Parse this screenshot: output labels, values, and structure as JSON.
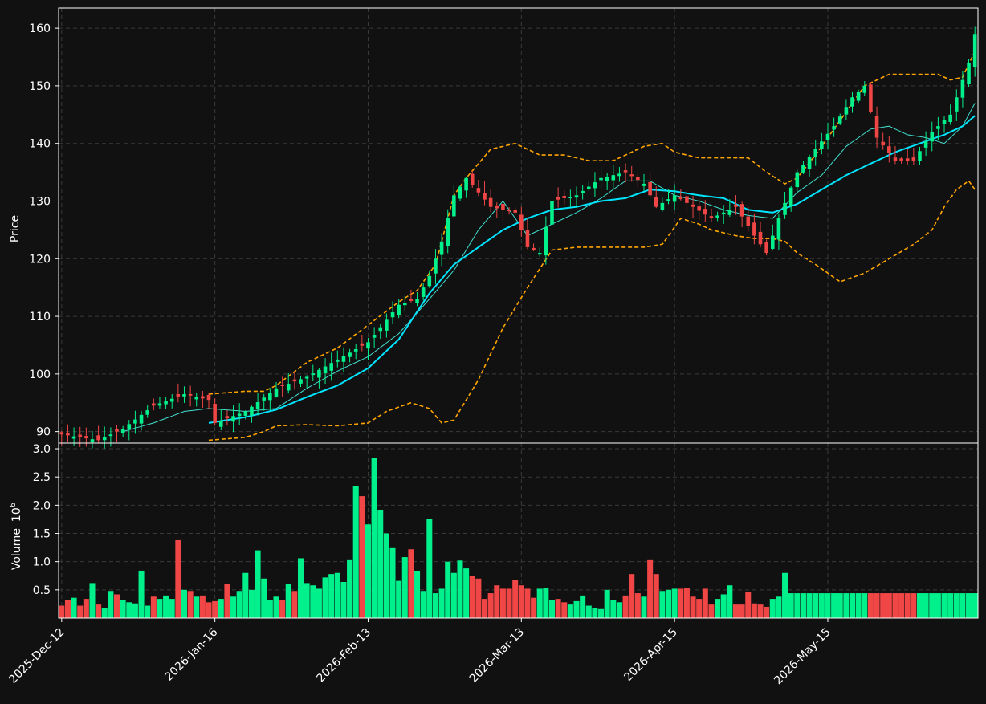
{
  "chart_data": {
    "type": "candlestick",
    "colors": {
      "background": "#111111",
      "up": "#00f08c",
      "down": "#f04646",
      "ma_fast": "#40e0d0",
      "ma_slow": "#00e5ff",
      "bands": "#ffa500",
      "grid": "#3a3a3a",
      "text": "#ffffff"
    },
    "price_panel": {
      "ylabel": "Price",
      "ylim": [
        88,
        163.5
      ],
      "yticks": [
        "90",
        "100",
        "110",
        "120",
        "130",
        "140",
        "150",
        "160"
      ],
      "grid": true
    },
    "volume_panel": {
      "ylabel": "Volume",
      "scale_label": "10",
      "scale_exp": "6",
      "ylim": [
        0,
        3.1
      ],
      "yticks": [
        "0.5",
        "1.0",
        "1.5",
        "2.0",
        "2.5",
        "3.0"
      ],
      "grid": true
    },
    "x_ticks": [
      {
        "index": 0,
        "label": "2025-Dec-12"
      },
      {
        "index": 25,
        "label": "2026-Jan-16"
      },
      {
        "index": 50,
        "label": "2026-Feb-13"
      },
      {
        "index": 75,
        "label": "2026-Mar-13"
      },
      {
        "index": 100,
        "label": "2026-Apr-15"
      },
      {
        "index": 125,
        "label": "2026-May-15"
      }
    ],
    "anchors": {
      "close": [
        [
          0,
          89.5
        ],
        [
          6,
          88.5
        ],
        [
          10,
          90.5
        ],
        [
          15,
          94.5
        ],
        [
          20,
          96.5
        ],
        [
          24,
          95.5
        ],
        [
          25,
          91.5
        ],
        [
          30,
          93.5
        ],
        [
          35,
          97.5
        ],
        [
          40,
          99.5
        ],
        [
          45,
          102.5
        ],
        [
          50,
          105.5
        ],
        [
          55,
          112
        ],
        [
          58,
          113
        ],
        [
          60,
          117
        ],
        [
          62,
          123
        ],
        [
          64,
          131
        ],
        [
          66,
          134
        ],
        [
          70,
          129
        ],
        [
          74,
          128
        ],
        [
          76,
          122
        ],
        [
          78,
          121
        ],
        [
          80,
          130
        ],
        [
          84,
          131
        ],
        [
          88,
          134
        ],
        [
          92,
          135
        ],
        [
          95,
          133
        ],
        [
          97,
          129
        ],
        [
          100,
          131
        ],
        [
          103,
          129
        ],
        [
          106,
          127
        ],
        [
          110,
          129
        ],
        [
          113,
          124
        ],
        [
          115,
          121
        ],
        [
          117,
          127
        ],
        [
          120,
          135
        ],
        [
          123,
          139
        ],
        [
          126,
          143
        ],
        [
          129,
          148
        ],
        [
          131,
          150
        ],
        [
          133,
          141
        ],
        [
          136,
          137
        ],
        [
          139,
          137
        ],
        [
          142,
          142
        ],
        [
          145,
          145
        ],
        [
          146,
          148
        ],
        [
          148,
          154
        ],
        [
          149,
          159
        ]
      ],
      "ma_fast": [
        [
          10,
          90
        ],
        [
          15,
          91.5
        ],
        [
          20,
          93.5
        ],
        [
          24,
          94
        ],
        [
          30,
          93.5
        ],
        [
          35,
          94
        ],
        [
          40,
          97.5
        ],
        [
          45,
          100.5
        ],
        [
          50,
          103
        ],
        [
          55,
          107
        ],
        [
          60,
          113
        ],
        [
          64,
          118
        ],
        [
          68,
          125
        ],
        [
          72,
          130
        ],
        [
          76,
          124
        ],
        [
          80,
          126
        ],
        [
          84,
          128
        ],
        [
          88,
          130.5
        ],
        [
          92,
          133.5
        ],
        [
          96,
          133.5
        ],
        [
          100,
          131
        ],
        [
          104,
          130
        ],
        [
          108,
          128.5
        ],
        [
          112,
          127.5
        ],
        [
          116,
          127
        ],
        [
          120,
          131.5
        ],
        [
          124,
          134.5
        ],
        [
          128,
          139.5
        ],
        [
          132,
          142.5
        ],
        [
          135,
          143
        ],
        [
          138,
          141.5
        ],
        [
          141,
          141
        ],
        [
          144,
          140
        ],
        [
          147,
          143
        ],
        [
          149,
          147
        ]
      ],
      "ma_slow": [
        [
          24,
          91.5
        ],
        [
          30,
          92.5
        ],
        [
          35,
          93.8
        ],
        [
          40,
          96
        ],
        [
          45,
          98
        ],
        [
          50,
          101
        ],
        [
          55,
          106
        ],
        [
          60,
          114
        ],
        [
          64,
          119
        ],
        [
          68,
          122
        ],
        [
          72,
          125
        ],
        [
          76,
          127
        ],
        [
          80,
          128.5
        ],
        [
          84,
          129
        ],
        [
          88,
          130
        ],
        [
          92,
          130.5
        ],
        [
          96,
          132
        ],
        [
          100,
          131.7
        ],
        [
          104,
          131
        ],
        [
          108,
          130.5
        ],
        [
          112,
          128.5
        ],
        [
          116,
          128
        ],
        [
          120,
          129.5
        ],
        [
          124,
          132
        ],
        [
          128,
          134.5
        ],
        [
          132,
          136.5
        ],
        [
          136,
          138.5
        ],
        [
          140,
          140
        ],
        [
          144,
          141.5
        ],
        [
          147,
          143
        ],
        [
          149,
          144.8
        ]
      ],
      "upper_band": [
        [
          24,
          96.5
        ],
        [
          30,
          97
        ],
        [
          33,
          97
        ],
        [
          35,
          98
        ],
        [
          40,
          102
        ],
        [
          45,
          104.5
        ],
        [
          50,
          108.5
        ],
        [
          55,
          112.5
        ],
        [
          58,
          114.5
        ],
        [
          61,
          119
        ],
        [
          64,
          131
        ],
        [
          66,
          134
        ],
        [
          70,
          139
        ],
        [
          74,
          140
        ],
        [
          78,
          138
        ],
        [
          82,
          138
        ],
        [
          86,
          137
        ],
        [
          90,
          137
        ],
        [
          92,
          138
        ],
        [
          95,
          139.5
        ],
        [
          98,
          140
        ],
        [
          100,
          138.5
        ],
        [
          104,
          137.5
        ],
        [
          108,
          137.5
        ],
        [
          112,
          137.5
        ],
        [
          115,
          135
        ],
        [
          118,
          133
        ],
        [
          120,
          134
        ],
        [
          123,
          138
        ],
        [
          127,
          144
        ],
        [
          131,
          150
        ],
        [
          135,
          152
        ],
        [
          139,
          152
        ],
        [
          143,
          152
        ],
        [
          145,
          151
        ],
        [
          147,
          151.5
        ],
        [
          149,
          156
        ]
      ],
      "lower_band": [
        [
          24,
          88.5
        ],
        [
          30,
          89
        ],
        [
          33,
          90
        ],
        [
          35,
          91
        ],
        [
          40,
          91.2
        ],
        [
          45,
          91
        ],
        [
          50,
          91.5
        ],
        [
          53,
          93.5
        ],
        [
          57,
          95
        ],
        [
          60,
          94
        ],
        [
          62,
          91.5
        ],
        [
          64,
          92
        ],
        [
          68,
          99
        ],
        [
          72,
          108
        ],
        [
          76,
          115
        ],
        [
          80,
          121.5
        ],
        [
          84,
          122
        ],
        [
          88,
          122
        ],
        [
          92,
          122
        ],
        [
          95,
          122
        ],
        [
          98,
          122.5
        ],
        [
          100,
          125.5
        ],
        [
          101,
          127
        ],
        [
          104,
          126
        ],
        [
          106,
          125
        ],
        [
          110,
          124
        ],
        [
          113,
          123.5
        ],
        [
          116,
          123.5
        ],
        [
          118,
          123
        ],
        [
          120,
          121
        ],
        [
          123,
          119
        ],
        [
          125,
          117.5
        ],
        [
          127,
          116
        ],
        [
          131,
          117.5
        ],
        [
          135,
          120
        ],
        [
          139,
          122.5
        ],
        [
          142,
          125
        ],
        [
          144,
          129
        ],
        [
          146,
          132
        ],
        [
          148,
          133.5
        ],
        [
          149,
          132
        ]
      ],
      "volume": [
        [
          0,
          0.22
        ],
        [
          1,
          0.32
        ],
        [
          2,
          0.36
        ],
        [
          3,
          0.22
        ],
        [
          4,
          0.34
        ],
        [
          5,
          0.62
        ],
        [
          6,
          0.24
        ],
        [
          7,
          0.18
        ],
        [
          8,
          0.48
        ],
        [
          9,
          0.42
        ],
        [
          10,
          0.32
        ],
        [
          11,
          0.28
        ],
        [
          12,
          0.26
        ],
        [
          13,
          0.84
        ],
        [
          14,
          0.22
        ],
        [
          15,
          0.38
        ],
        [
          16,
          0.34
        ],
        [
          17,
          0.4
        ],
        [
          18,
          0.34
        ],
        [
          19,
          1.38
        ],
        [
          20,
          0.5
        ],
        [
          21,
          0.48
        ],
        [
          22,
          0.38
        ],
        [
          23,
          0.4
        ],
        [
          24,
          0.28
        ],
        [
          25,
          0.3
        ],
        [
          26,
          0.34
        ],
        [
          27,
          0.6
        ],
        [
          28,
          0.38
        ],
        [
          29,
          0.48
        ],
        [
          30,
          0.8
        ],
        [
          31,
          0.5
        ],
        [
          32,
          1.2
        ],
        [
          33,
          0.7
        ],
        [
          34,
          0.32
        ],
        [
          35,
          0.38
        ],
        [
          36,
          0.32
        ],
        [
          37,
          0.6
        ],
        [
          38,
          0.48
        ],
        [
          39,
          1.06
        ],
        [
          40,
          0.62
        ],
        [
          41,
          0.58
        ],
        [
          42,
          0.52
        ],
        [
          43,
          0.72
        ],
        [
          44,
          0.78
        ],
        [
          45,
          0.8
        ],
        [
          46,
          0.64
        ],
        [
          47,
          1.04
        ],
        [
          48,
          2.34
        ],
        [
          49,
          2.16
        ],
        [
          50,
          1.66
        ],
        [
          51,
          2.84
        ],
        [
          52,
          1.92
        ],
        [
          53,
          1.5
        ],
        [
          54,
          1.24
        ],
        [
          55,
          0.66
        ],
        [
          56,
          1.08
        ],
        [
          57,
          1.22
        ],
        [
          58,
          0.84
        ],
        [
          59,
          0.48
        ],
        [
          60,
          1.76
        ],
        [
          61,
          0.44
        ],
        [
          62,
          0.52
        ],
        [
          63,
          1.0
        ],
        [
          64,
          0.8
        ],
        [
          65,
          1.02
        ],
        [
          66,
          0.88
        ],
        [
          67,
          0.74
        ],
        [
          68,
          0.7
        ],
        [
          69,
          0.34
        ],
        [
          70,
          0.44
        ],
        [
          71,
          0.58
        ],
        [
          72,
          0.52
        ],
        [
          73,
          0.52
        ],
        [
          74,
          0.68
        ],
        [
          75,
          0.58
        ],
        [
          76,
          0.52
        ],
        [
          77,
          0.36
        ],
        [
          78,
          0.52
        ],
        [
          79,
          0.54
        ],
        [
          80,
          0.32
        ],
        [
          81,
          0.34
        ],
        [
          82,
          0.28
        ],
        [
          83,
          0.24
        ],
        [
          84,
          0.3
        ],
        [
          85,
          0.4
        ],
        [
          86,
          0.22
        ],
        [
          87,
          0.18
        ],
        [
          88,
          0.16
        ],
        [
          89,
          0.5
        ],
        [
          90,
          0.32
        ],
        [
          91,
          0.28
        ],
        [
          92,
          0.4
        ],
        [
          93,
          0.78
        ],
        [
          94,
          0.44
        ],
        [
          95,
          0.38
        ],
        [
          96,
          1.04
        ],
        [
          97,
          0.78
        ],
        [
          98,
          0.48
        ],
        [
          99,
          0.5
        ],
        [
          100,
          0.52
        ],
        [
          101,
          0.52
        ],
        [
          102,
          0.54
        ],
        [
          103,
          0.38
        ],
        [
          104,
          0.34
        ],
        [
          105,
          0.52
        ],
        [
          106,
          0.24
        ],
        [
          107,
          0.34
        ],
        [
          108,
          0.42
        ],
        [
          109,
          0.58
        ],
        [
          110,
          0.24
        ],
        [
          111,
          0.24
        ],
        [
          112,
          0.46
        ],
        [
          113,
          0.26
        ],
        [
          114,
          0.24
        ],
        [
          115,
          0.2
        ],
        [
          116,
          0.34
        ],
        [
          117,
          0.38
        ],
        [
          118,
          0.8
        ],
        [
          119,
          0.44
        ]
      ]
    }
  }
}
